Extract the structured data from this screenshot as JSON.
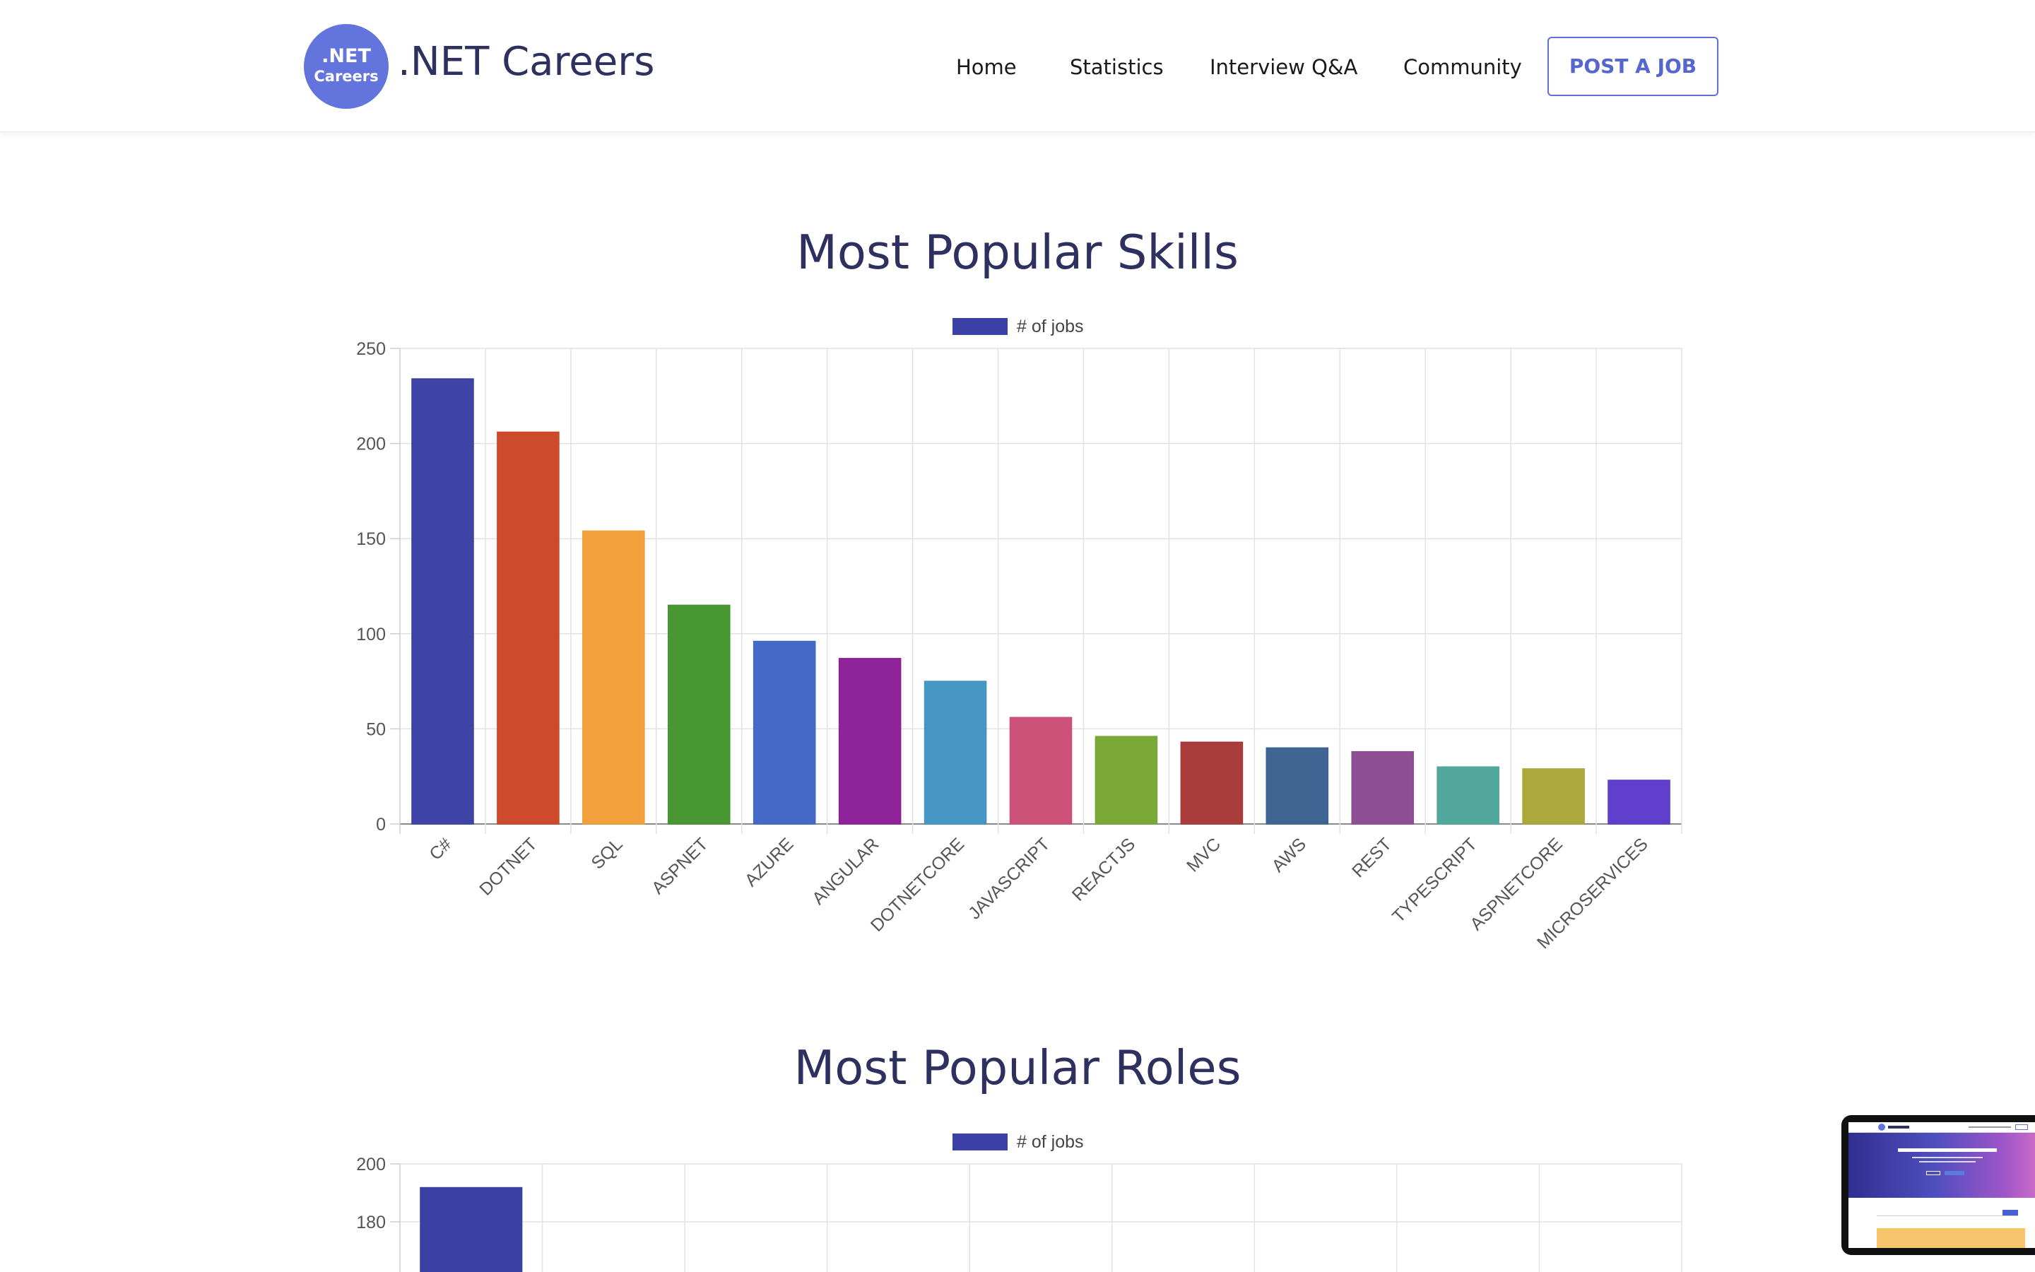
{
  "header": {
    "logo": {
      "line1": ".NET",
      "line2": "Careers"
    },
    "brand": ".NET Careers",
    "nav": [
      {
        "label": "Home"
      },
      {
        "label": "Statistics"
      },
      {
        "label": "Interview Q&A"
      },
      {
        "label": "Community"
      }
    ],
    "post_job_label": "POST A JOB"
  },
  "skills_section": {
    "title": "Most Popular Skills"
  },
  "roles_section": {
    "title": "Most Popular Roles"
  },
  "chart_data": [
    {
      "type": "bar",
      "title": "Most Popular Skills",
      "legend": "# of jobs",
      "legend_position": "top",
      "grid": true,
      "ylim": [
        0,
        250
      ],
      "yticks": [
        0,
        50,
        100,
        150,
        200,
        250
      ],
      "categories": [
        "C#",
        "DOTNET",
        "SQL",
        "ASPNET",
        "AZURE",
        "ANGULAR",
        "DOTNETCORE",
        "JAVASCRIPT",
        "REACTJS",
        "MVC",
        "AWS",
        "REST",
        "TYPESCRIPT",
        "ASPNETCORE",
        "MICROSERVICES"
      ],
      "series": [
        {
          "name": "# of jobs",
          "values": [
            234,
            206,
            154,
            115,
            96,
            87,
            75,
            56,
            46,
            43,
            40,
            38,
            30,
            29,
            23
          ]
        }
      ],
      "colors": [
        "#3b40a5",
        "#cc4628",
        "#f29e38",
        "#45952f",
        "#4166c6",
        "#8d1f98",
        "#4295c3",
        "#cc4f76",
        "#77a733",
        "#a83838",
        "#3c6291",
        "#8c4b93",
        "#4fa69b",
        "#aaa637",
        "#5c3bcb"
      ]
    },
    {
      "type": "bar",
      "title": "Most Popular Roles",
      "legend": "# of jobs",
      "legend_position": "top",
      "grid": true,
      "yticks_visible": [
        180,
        200
      ],
      "ylim_top": 200,
      "series": [
        {
          "name": "# of jobs",
          "values": [
            192
          ]
        }
      ],
      "colors": [
        "#3b40a5"
      ]
    }
  ]
}
